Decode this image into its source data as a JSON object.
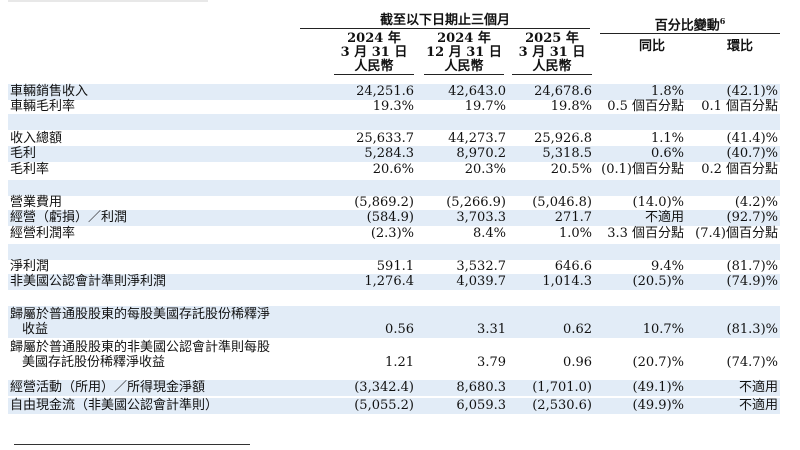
{
  "header": {
    "span_title": "截至以下日期止三個月",
    "pct_title": "百分比變動",
    "pct_footnote": "6",
    "columns": [
      {
        "year": "2024 年",
        "date": "3 月 31 日",
        "currency": "人民幣"
      },
      {
        "year": "2024 年",
        "date": "12 月 31 日",
        "currency": "人民幣"
      },
      {
        "year": "2025 年",
        "date": "3 月 31 日",
        "currency": "人民幣"
      }
    ],
    "yoy": "同比",
    "qoq": "環比"
  },
  "rows": [
    {
      "label": "車輛銷售收入",
      "v1": "24,251.6",
      "v2": "42,643.0",
      "v3": "24,678.6",
      "yoy": "1.8%",
      "qoq": "(42.1)%"
    },
    {
      "label": "車輛毛利率",
      "v1": "19.3%",
      "v2": "19.7%",
      "v3": "19.8%",
      "yoy": "0.5 個百分點",
      "qoq": "0.1 個百分點"
    },
    {
      "label": "收入總額",
      "v1": "25,633.7",
      "v2": "44,273.7",
      "v3": "25,926.8",
      "yoy": "1.1%",
      "qoq": "(41.4)%"
    },
    {
      "label": "毛利",
      "v1": "5,284.3",
      "v2": "8,970.2",
      "v3": "5,318.5",
      "yoy": "0.6%",
      "qoq": "(40.7)%"
    },
    {
      "label": "毛利率",
      "v1": "20.6%",
      "v2": "20.3%",
      "v3": "20.5%",
      "yoy": "(0.1)個百分點",
      "qoq": "0.2 個百分點"
    },
    {
      "label": "營業費用",
      "v1": "(5,869.2)",
      "v2": "(5,266.9)",
      "v3": "(5,046.8)",
      "yoy": "(14.0)%",
      "qoq": "(4.2)%"
    },
    {
      "label": "經營（虧損）／利潤",
      "v1": "(584.9)",
      "v2": "3,703.3",
      "v3": "271.7",
      "yoy": "不適用",
      "qoq": "(92.7)%"
    },
    {
      "label": "經營利潤率",
      "v1": "(2.3)%",
      "v2": "8.4%",
      "v3": "1.0%",
      "yoy": "3.3 個百分點",
      "qoq": "(7.4)個百分點"
    },
    {
      "label": "淨利潤",
      "v1": "591.1",
      "v2": "3,532.7",
      "v3": "646.6",
      "yoy": "9.4%",
      "qoq": "(81.7)%"
    },
    {
      "label": "非美國公認會計準則淨利潤",
      "v1": "1,276.4",
      "v2": "4,039.7",
      "v3": "1,014.3",
      "yoy": "(20.5)%",
      "qoq": "(74.9)%"
    },
    {
      "label_line1": "歸屬於普通股股東的每股美國存託股份稀釋淨",
      "label_line2": "收益",
      "v1": "0.56",
      "v2": "3.31",
      "v3": "0.62",
      "yoy": "10.7%",
      "qoq": "(81.3)%"
    },
    {
      "label_line1": "歸屬於普通股股東的非美國公認會計準則每股",
      "label_line2": "美國存託股份稀釋淨收益",
      "v1": "1.21",
      "v2": "3.79",
      "v3": "0.96",
      "yoy": "(20.7)%",
      "qoq": "(74.7)%"
    },
    {
      "label": "經營活動（所用）／所得現金淨額",
      "v1": "(3,342.4)",
      "v2": "8,680.3",
      "v3": "(1,701.0)",
      "yoy": "(49.1)%",
      "qoq": "不適用"
    },
    {
      "label": "自由現金流（非美國公認會計準則）",
      "v1": "(5,055.2)",
      "v2": "6,059.3",
      "v3": "(2,530.6)",
      "yoy": "(49.9)%",
      "qoq": "不適用"
    }
  ]
}
